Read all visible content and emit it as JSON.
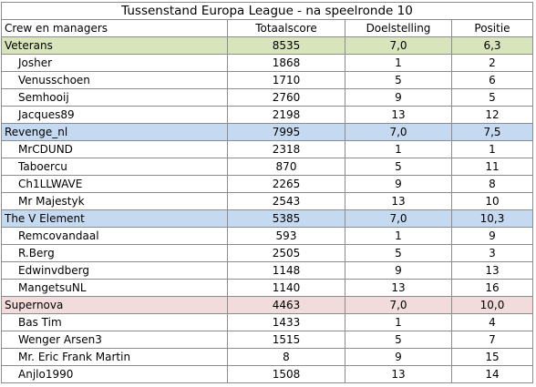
{
  "title": "Tussenstand Europa League  - na speelronde 10",
  "headers": [
    "Crew en managers",
    "Totaalscore",
    "Doelstelling",
    "Positie"
  ],
  "teams": [
    {
      "name": "Veterans",
      "score": "8535",
      "goal": "7,0",
      "pos": "6,3",
      "color": "#d8e4bc",
      "members": [
        {
          "name": "Josher",
          "score": "1868",
          "goal": "1",
          "pos": "2"
        },
        {
          "name": "Venusschoen",
          "score": "1710",
          "goal": "5",
          "pos": "6"
        },
        {
          "name": "Semhooij",
          "score": "2760",
          "goal": "9",
          "pos": "5"
        },
        {
          "name": "Jacques89",
          "score": "2198",
          "goal": "13",
          "pos": "12"
        }
      ]
    },
    {
      "name": "Revenge_nl",
      "score": "7995",
      "goal": "7,0",
      "pos": "7,5",
      "color": "#c5d9f1",
      "members": [
        {
          "name": "MrCDUND",
          "score": "2318",
          "goal": "1",
          "pos": "1"
        },
        {
          "name": "Taboercu",
          "score": "870",
          "goal": "5",
          "pos": "11"
        },
        {
          "name": "Ch1LLWAVE",
          "score": "2265",
          "goal": "9",
          "pos": "8"
        },
        {
          "name": "Mr Majestyk",
          "score": "2543",
          "goal": "13",
          "pos": "10"
        }
      ]
    },
    {
      "name": "The V Element",
      "score": "5385",
      "goal": "7,0",
      "pos": "10,3",
      "color": "#c5d9f1",
      "members": [
        {
          "name": "Remcovandaal",
          "score": "593",
          "goal": "1",
          "pos": "9"
        },
        {
          "name": "R.Berg",
          "score": "2505",
          "goal": "5",
          "pos": "3"
        },
        {
          "name": "Edwinvdberg",
          "score": "1148",
          "goal": "9",
          "pos": "13"
        },
        {
          "name": "MangetsuNL",
          "score": "1140",
          "goal": "13",
          "pos": "16"
        }
      ]
    },
    {
      "name": "Supernova",
      "score": "4463",
      "goal": "7,0",
      "pos": "10,0",
      "color": "#f2dcdb",
      "members": [
        {
          "name": "Bas Tim",
          "score": "1433",
          "goal": "1",
          "pos": "4"
        },
        {
          "name": "Wenger Arsen3",
          "score": "1515",
          "goal": "5",
          "pos": "7"
        },
        {
          "name": "Mr. Eric Frank Martin",
          "score": "8",
          "goal": "9",
          "pos": "15"
        },
        {
          "name": "Anjlo1990",
          "score": "1508",
          "goal": "13",
          "pos": "14"
        }
      ]
    }
  ]
}
